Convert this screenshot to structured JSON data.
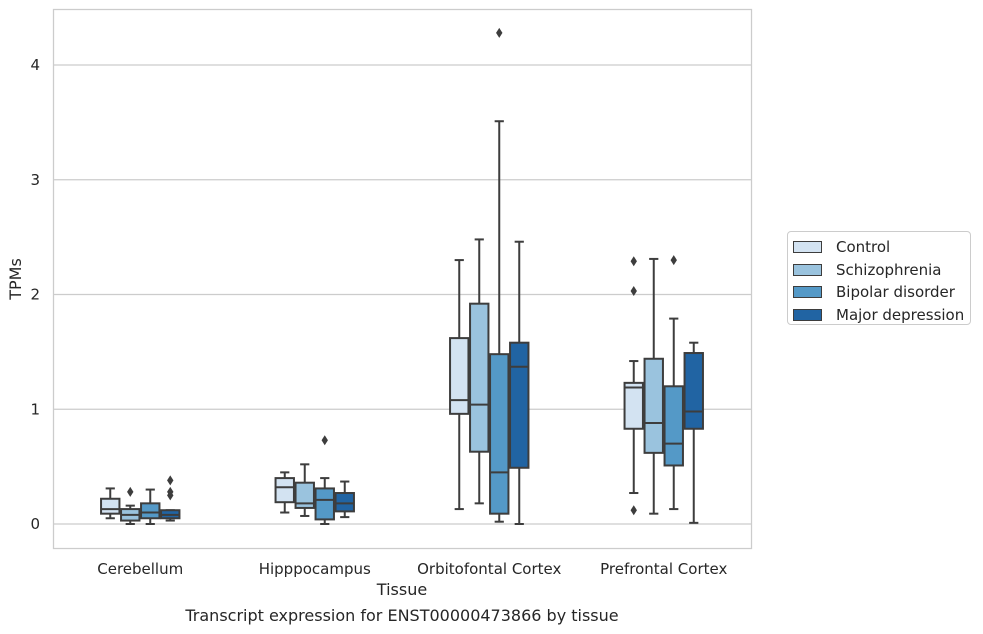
{
  "chart_data": {
    "type": "box",
    "title": "Transcript expression for ENST00000473866 by tissue",
    "xlabel": "Tissue",
    "ylabel": "TPMs",
    "ylim": [
      -0.21,
      4.5
    ],
    "yticks": [
      0,
      1,
      2,
      3,
      4
    ],
    "grid": true,
    "legend_position": "right",
    "categories": [
      "Cerebellum",
      "Hipppocampus",
      "Orbitofontal Cortex",
      "Prefrontal Cortex"
    ],
    "series": [
      {
        "name": "Control",
        "color": "#d3e3f2",
        "boxes": [
          {
            "whislo": 0.05,
            "q1": 0.09,
            "med": 0.13,
            "q3": 0.22,
            "whishi": 0.31,
            "fliers": []
          },
          {
            "whislo": 0.1,
            "q1": 0.19,
            "med": 0.32,
            "q3": 0.4,
            "whishi": 0.45,
            "fliers": []
          },
          {
            "whislo": 0.13,
            "q1": 0.96,
            "med": 1.08,
            "q3": 1.62,
            "whishi": 2.3,
            "fliers": []
          },
          {
            "whislo": 0.27,
            "q1": 0.83,
            "med": 1.19,
            "q3": 1.23,
            "whishi": 1.42,
            "fliers": [
              0.12,
              2.03,
              2.29
            ]
          }
        ]
      },
      {
        "name": "Schizophrenia",
        "color": "#9ac3de",
        "boxes": [
          {
            "whislo": 0.0,
            "q1": 0.03,
            "med": 0.08,
            "q3": 0.13,
            "whishi": 0.16,
            "fliers": [
              0.28
            ]
          },
          {
            "whislo": 0.07,
            "q1": 0.14,
            "med": 0.18,
            "q3": 0.36,
            "whishi": 0.52,
            "fliers": []
          },
          {
            "whislo": 0.18,
            "q1": 0.63,
            "med": 1.04,
            "q3": 1.92,
            "whishi": 2.48,
            "fliers": []
          },
          {
            "whislo": 0.09,
            "q1": 0.62,
            "med": 0.88,
            "q3": 1.44,
            "whishi": 2.31,
            "fliers": []
          }
        ]
      },
      {
        "name": "Bipolar disorder",
        "color": "#5499c7",
        "boxes": [
          {
            "whislo": 0.0,
            "q1": 0.05,
            "med": 0.1,
            "q3": 0.18,
            "whishi": 0.3,
            "fliers": []
          },
          {
            "whislo": 0.0,
            "q1": 0.04,
            "med": 0.21,
            "q3": 0.31,
            "whishi": 0.4,
            "fliers": [
              0.73
            ]
          },
          {
            "whislo": 0.02,
            "q1": 0.09,
            "med": 0.45,
            "q3": 1.48,
            "whishi": 3.51,
            "fliers": [
              4.28
            ]
          },
          {
            "whislo": 0.13,
            "q1": 0.51,
            "med": 0.7,
            "q3": 1.2,
            "whishi": 1.79,
            "fliers": [
              2.3
            ]
          }
        ]
      },
      {
        "name": "Major depression",
        "color": "#2164a3",
        "boxes": [
          {
            "whislo": 0.03,
            "q1": 0.05,
            "med": 0.08,
            "q3": 0.12,
            "whishi": 0.12,
            "fliers": [
              0.25,
              0.28,
              0.38
            ]
          },
          {
            "whislo": 0.06,
            "q1": 0.11,
            "med": 0.18,
            "q3": 0.27,
            "whishi": 0.37,
            "fliers": []
          },
          {
            "whislo": 0.0,
            "q1": 0.49,
            "med": 1.37,
            "q3": 1.58,
            "whishi": 2.46,
            "fliers": []
          },
          {
            "whislo": 0.01,
            "q1": 0.83,
            "med": 0.98,
            "q3": 1.49,
            "whishi": 1.58,
            "fliers": []
          }
        ]
      }
    ]
  }
}
